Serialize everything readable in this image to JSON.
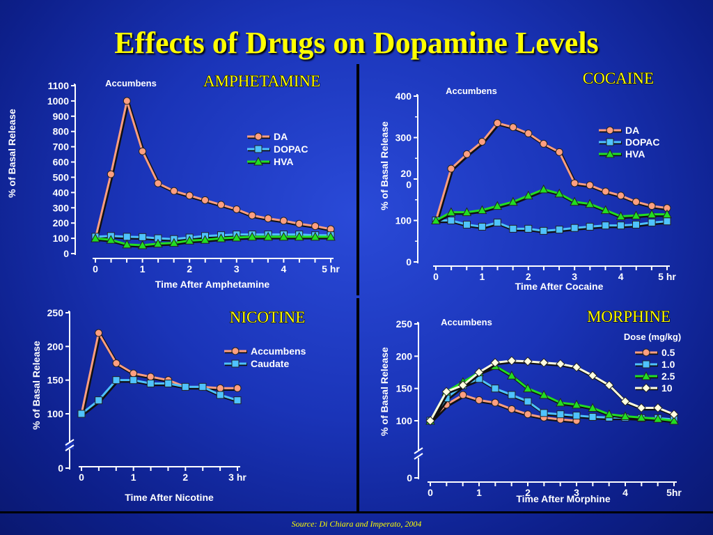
{
  "title": "Effects of Drugs on Dopamine Levels",
  "source": "Source: Di Chiara and Imperato, 2004",
  "colors": {
    "da": "#ff9f80",
    "dopac": "#4fc3ff",
    "hva": "#22dd22",
    "white": "#ffffe0"
  },
  "chart_data": [
    {
      "type": "line",
      "drug": "AMPHETAMINE",
      "region_label": "Accumbens",
      "xlabel": "Time After Amphetamine",
      "ylabel": "% of Basal Release",
      "xlim": [
        0,
        5
      ],
      "ylim": [
        0,
        1100
      ],
      "xticks": [
        "0",
        "1",
        "2",
        "3",
        "4",
        "5 hr"
      ],
      "yticks": [
        "0",
        "100",
        "200",
        "300",
        "400",
        "500",
        "600",
        "700",
        "800",
        "900",
        "1000",
        "1100"
      ],
      "series": [
        {
          "name": "DA",
          "marker": "circle",
          "x": [
            0,
            0.33,
            0.67,
            1,
            1.33,
            1.67,
            2,
            2.33,
            2.67,
            3,
            3.33,
            3.67,
            4,
            4.33,
            4.67,
            5
          ],
          "y": [
            100,
            520,
            1000,
            670,
            460,
            410,
            380,
            350,
            320,
            290,
            250,
            230,
            215,
            195,
            180,
            160
          ]
        },
        {
          "name": "DOPAC",
          "marker": "square",
          "x": [
            0,
            0.33,
            0.67,
            1,
            1.33,
            1.67,
            2,
            2.33,
            2.67,
            3,
            3.33,
            3.67,
            4,
            4.33,
            4.67,
            5
          ],
          "y": [
            110,
            115,
            110,
            108,
            100,
            95,
            105,
            115,
            120,
            125,
            125,
            125,
            125,
            125,
            120,
            120
          ]
        },
        {
          "name": "HVA",
          "marker": "triangle",
          "x": [
            0,
            0.33,
            0.67,
            1,
            1.33,
            1.67,
            2,
            2.33,
            2.67,
            3,
            3.33,
            3.67,
            4,
            4.33,
            4.67,
            5
          ],
          "y": [
            100,
            90,
            60,
            55,
            65,
            70,
            85,
            90,
            100,
            105,
            110,
            110,
            110,
            110,
            110,
            110
          ]
        }
      ]
    },
    {
      "type": "line",
      "drug": "COCAINE",
      "region_label": "Accumbens",
      "xlabel": "Time After Cocaine",
      "ylabel": "% of Basal Release",
      "xlim": [
        0,
        5
      ],
      "ylim": [
        0,
        400
      ],
      "xticks": [
        "0",
        "1",
        "2",
        "3",
        "4",
        "5 hr"
      ],
      "yticks": [
        "0",
        "100",
        "20\n0",
        "300",
        "400"
      ],
      "series": [
        {
          "name": "DA",
          "marker": "circle",
          "x": [
            0,
            0.33,
            0.67,
            1,
            1.33,
            1.67,
            2,
            2.33,
            2.67,
            3,
            3.33,
            3.67,
            4,
            4.33,
            4.67,
            5
          ],
          "y": [
            100,
            225,
            260,
            290,
            335,
            325,
            310,
            285,
            265,
            190,
            185,
            170,
            160,
            145,
            135,
            130
          ]
        },
        {
          "name": "DOPAC",
          "marker": "square",
          "x": [
            0,
            0.33,
            0.67,
            1,
            1.33,
            1.67,
            2,
            2.33,
            2.67,
            3,
            3.33,
            3.67,
            4,
            4.33,
            4.67,
            5
          ],
          "y": [
            100,
            100,
            90,
            85,
            95,
            80,
            80,
            75,
            78,
            82,
            85,
            88,
            88,
            90,
            95,
            98
          ]
        },
        {
          "name": "HVA",
          "marker": "triangle",
          "x": [
            0,
            0.33,
            0.67,
            1,
            1.33,
            1.67,
            2,
            2.33,
            2.67,
            3,
            3.33,
            3.67,
            4,
            4.33,
            4.67,
            5
          ],
          "y": [
            100,
            120,
            120,
            125,
            135,
            145,
            160,
            175,
            165,
            145,
            140,
            125,
            110,
            112,
            115,
            115
          ]
        }
      ],
      "legend": [
        "DA",
        "DOPAC",
        "HVA"
      ]
    },
    {
      "type": "line",
      "drug": "NICOTINE",
      "xlabel": "Time After Nicotine",
      "ylabel": "% of Basal Release",
      "xlim": [
        0,
        3
      ],
      "ylim": [
        0,
        250
      ],
      "xticks": [
        "0",
        "1",
        "2",
        "3 hr"
      ],
      "yticks": [
        "0",
        "100",
        "150",
        "200",
        "250"
      ],
      "axis_break": true,
      "series": [
        {
          "name": "Accumbens",
          "marker": "circle",
          "x": [
            0,
            0.33,
            0.67,
            1,
            1.33,
            1.67,
            2,
            2.33,
            2.67,
            3
          ],
          "y": [
            100,
            220,
            175,
            160,
            155,
            150,
            140,
            140,
            138,
            138
          ]
        },
        {
          "name": "Caudate",
          "marker": "square",
          "x": [
            0,
            0.33,
            0.67,
            1,
            1.33,
            1.67,
            2,
            2.33,
            2.67,
            3
          ],
          "y": [
            100,
            120,
            150,
            150,
            145,
            145,
            140,
            140,
            128,
            120
          ]
        }
      ]
    },
    {
      "type": "line",
      "drug": "MORPHINE",
      "region_label": "Accumbens",
      "legend_title": "Dose (mg/kg)",
      "xlabel": "Time After Morphine",
      "ylabel": "% of Basal Release",
      "xlim": [
        0,
        5
      ],
      "ylim": [
        0,
        250
      ],
      "xticks": [
        "0",
        "1",
        "2",
        "3",
        "4",
        "5hr"
      ],
      "yticks": [
        "0",
        "100",
        "150",
        "200",
        "250"
      ],
      "axis_break": true,
      "series": [
        {
          "name": "0.5",
          "marker": "circle",
          "x": [
            0,
            0.33,
            0.67,
            1,
            1.33,
            1.67,
            2,
            2.33,
            2.67,
            3
          ],
          "y": [
            100,
            125,
            140,
            132,
            128,
            118,
            110,
            105,
            102,
            100
          ]
        },
        {
          "name": "1.0",
          "marker": "square",
          "x": [
            0,
            0.33,
            0.67,
            1,
            1.33,
            1.67,
            2,
            2.33,
            2.67,
            3,
            3.33,
            3.67,
            4,
            4.33,
            4.67,
            5
          ],
          "y": [
            100,
            135,
            155,
            165,
            150,
            140,
            130,
            112,
            110,
            108,
            106,
            105,
            105,
            104,
            104,
            102
          ]
        },
        {
          "name": "2.5",
          "marker": "triangle",
          "x": [
            0,
            0.33,
            0.67,
            1,
            1.33,
            1.67,
            2,
            2.33,
            2.67,
            3,
            3.33,
            3.67,
            4,
            4.33,
            4.67,
            5
          ],
          "y": [
            100,
            145,
            160,
            175,
            185,
            170,
            150,
            140,
            128,
            125,
            120,
            110,
            107,
            105,
            103,
            100
          ]
        },
        {
          "name": "10",
          "marker": "diamond",
          "x": [
            0,
            0.33,
            0.67,
            1,
            1.33,
            1.67,
            2,
            2.33,
            2.67,
            3,
            3.33,
            3.67,
            4,
            4.33,
            4.67,
            5
          ],
          "y": [
            100,
            145,
            155,
            175,
            190,
            193,
            192,
            190,
            188,
            183,
            170,
            155,
            130,
            120,
            120,
            110
          ]
        }
      ]
    }
  ]
}
